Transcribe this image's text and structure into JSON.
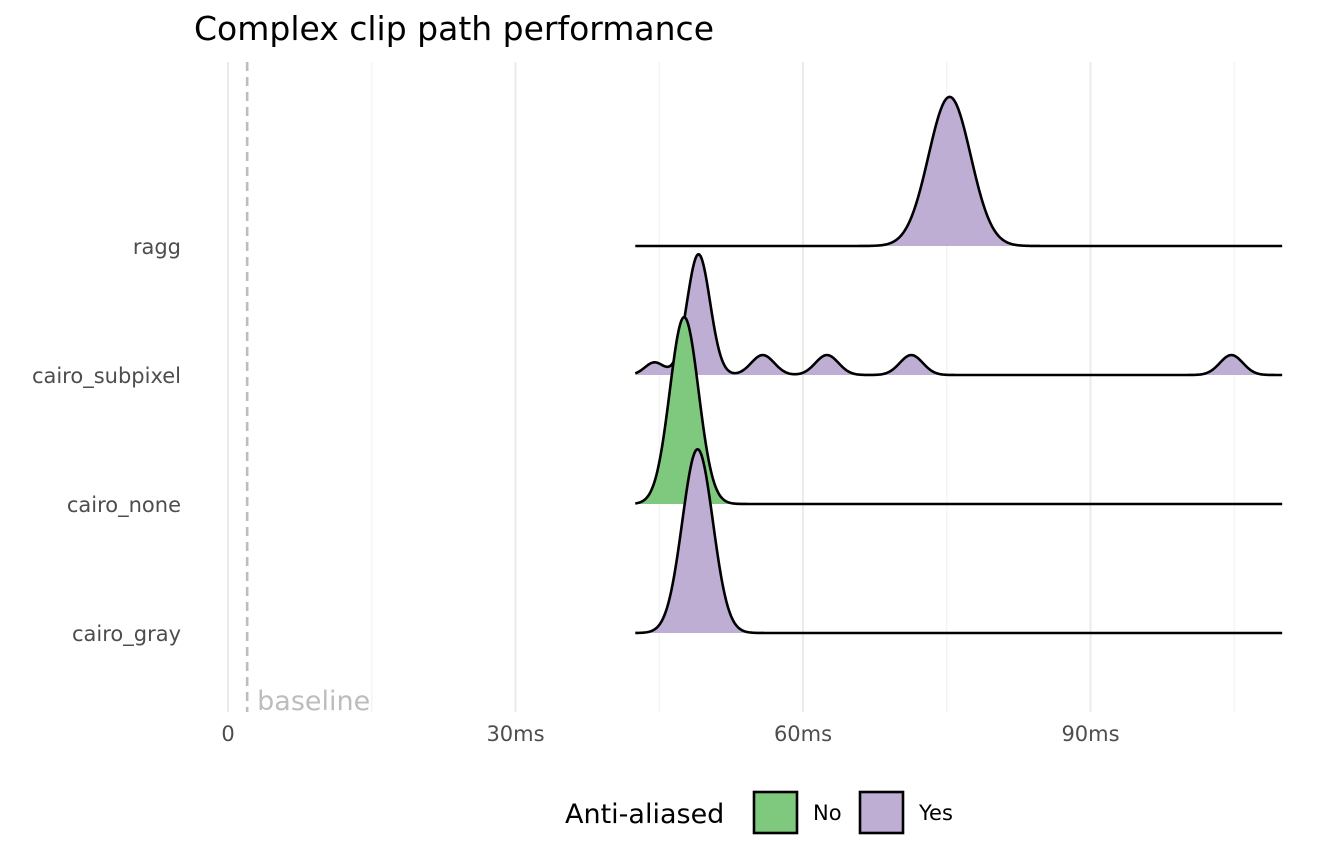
{
  "chart_data": {
    "type": "ridgeline",
    "title": "Complex clip path performance",
    "xlabel": "",
    "ylabel": "",
    "x_unit": "ms",
    "xlim": [
      -0.3,
      110
    ],
    "x_ticks": [
      0,
      30,
      60,
      90
    ],
    "x_tick_labels": [
      "0",
      "30ms",
      "60ms",
      "90ms"
    ],
    "categories": [
      "cairo_gray",
      "cairo_none",
      "cairo_subpixel",
      "ragg"
    ],
    "reference_line": {
      "x": 2,
      "label": "baseline",
      "style": "dashed"
    },
    "legend": {
      "title": "Anti-aliased",
      "position": "bottom",
      "entries": [
        {
          "label": "No",
          "color": "#7fc97f"
        },
        {
          "label": "Yes",
          "color": "#beaed4"
        }
      ]
    },
    "series": [
      {
        "category": "cairo_gray",
        "anti_aliased": "Yes",
        "x_range": [
          42.5,
          110
        ],
        "peaks": [
          {
            "x": 49,
            "height": 1.75,
            "sd": 1.6
          }
        ]
      },
      {
        "category": "cairo_none",
        "anti_aliased": "No",
        "x_range": [
          42.5,
          110
        ],
        "peaks": [
          {
            "x": 47.6,
            "height": 1.78,
            "sd": 1.5
          }
        ]
      },
      {
        "category": "cairo_subpixel",
        "anti_aliased": "Yes",
        "x_range": [
          42.5,
          110
        ],
        "peaks": [
          {
            "x": 49.1,
            "height": 1.15,
            "sd": 1.2
          },
          {
            "x": 44.5,
            "height": 0.12,
            "sd": 1.0
          },
          {
            "x": 55.8,
            "height": 0.19,
            "sd": 1.2
          },
          {
            "x": 62.5,
            "height": 0.19,
            "sd": 1.2
          },
          {
            "x": 71.3,
            "height": 0.19,
            "sd": 1.2
          },
          {
            "x": 104.7,
            "height": 0.19,
            "sd": 1.2
          }
        ]
      },
      {
        "category": "ragg",
        "anti_aliased": "Yes",
        "x_range": [
          42.5,
          110
        ],
        "peaks": [
          {
            "x": 75.3,
            "height": 1.42,
            "sd": 2.2
          }
        ]
      }
    ],
    "grid": true
  }
}
